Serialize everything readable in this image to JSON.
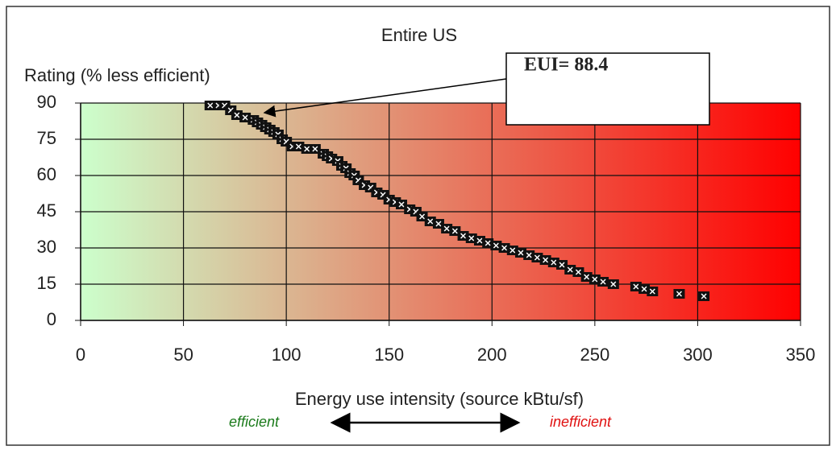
{
  "chart_data": {
    "type": "scatter",
    "title": "Entire US",
    "y_label": "Rating (% less efficient)",
    "x_label": "Energy use intensity (source kBtu/sf)",
    "annotation": "EUI= 88.4",
    "left_note": "efficient",
    "right_note": "inefficient",
    "left_note_color": "#1a7a1a",
    "right_note_color": "#e01010",
    "background_gradient": [
      "#ccffcc",
      "#ff0000"
    ],
    "marker_color": "#111111",
    "grid": true,
    "xlim": [
      0,
      350
    ],
    "ylim": [
      0,
      90
    ],
    "xticks": [
      0,
      50,
      100,
      150,
      200,
      250,
      300,
      350
    ],
    "yticks": [
      0,
      15,
      30,
      45,
      60,
      75,
      90
    ],
    "x": [
      63,
      67,
      70,
      73,
      76,
      80,
      84,
      86,
      88,
      90,
      92,
      94,
      96,
      98,
      100,
      103,
      106,
      110,
      114,
      118,
      120,
      122,
      125,
      127,
      129,
      131,
      133,
      135,
      138,
      141,
      144,
      147,
      150,
      153,
      156,
      160,
      163,
      166,
      170,
      174,
      178,
      182,
      186,
      190,
      194,
      198,
      202,
      206,
      210,
      214,
      218,
      222,
      226,
      230,
      234,
      238,
      242,
      246,
      250,
      254,
      259,
      270,
      274,
      278,
      291,
      303
    ],
    "y": [
      89,
      89,
      89,
      87,
      85,
      84,
      83,
      82,
      81,
      80,
      79,
      78,
      77,
      75,
      74,
      72,
      72,
      71,
      71,
      69,
      68,
      67,
      66,
      64,
      63,
      61,
      60,
      58,
      56,
      55,
      53,
      52,
      50,
      49,
      48,
      46,
      45,
      43,
      41,
      40,
      38,
      37,
      35,
      34,
      33,
      32,
      31,
      30,
      29,
      28,
      27,
      26,
      25,
      24,
      23,
      21,
      20,
      18,
      17,
      16,
      15,
      14,
      13,
      12,
      11,
      10
    ]
  }
}
